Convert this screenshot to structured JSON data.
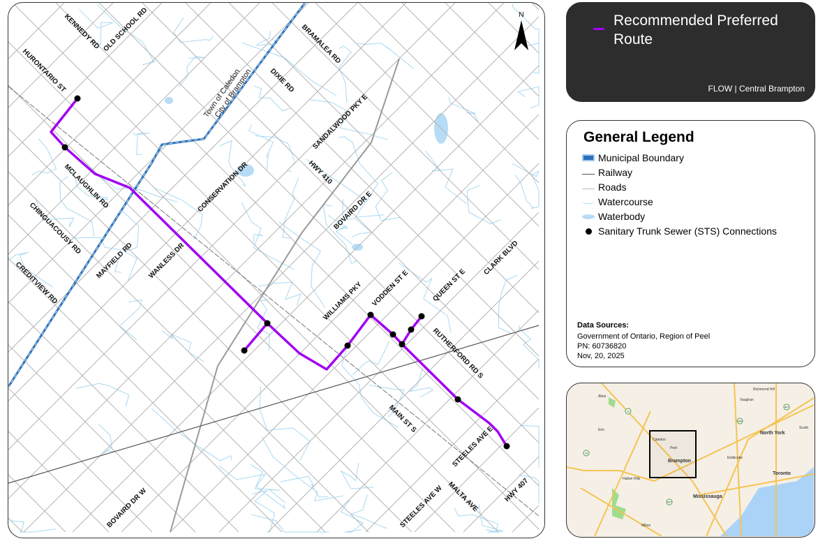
{
  "map": {
    "north_label": "N",
    "road_labels": [
      "KENNEDY RD",
      "OLD SCHOOL RD",
      "HURONTARIO ST",
      "BRAMALEA RD",
      "DIXIE RD",
      "SANDALWOOD PKY E",
      "HWY 410",
      "MCLAUGHLIN RD",
      "CONSERVATION DR",
      "CHINGUACOUSY RD",
      "MAYFIELD RD",
      "WANLESS DR",
      "BOVAIRD DR E",
      "CREDITVIEW RD",
      "WILLIAMS PKY",
      "VODDEN ST E",
      "QUEEN ST E",
      "CLARK BLVD",
      "RUTHERFORD RD S",
      "MAIN ST S",
      "STEELES AVE E",
      "BOVAIRD DR W",
      "STEELES AVE W",
      "MALTA AVE",
      "HWY 407"
    ],
    "boundary_labels": [
      "Town of Caledon",
      "City of Brampton"
    ],
    "colors": {
      "route": "#a100f2",
      "boundary": "#2a6fb8",
      "watercourse": "#a9d8f2",
      "roads": "#b5b5b5",
      "railway": "#555555"
    }
  },
  "title_panel": {
    "title": "Recommended Preferred Route",
    "subtitle": "FLOW | Central Brampton"
  },
  "legend": {
    "title": "General Legend",
    "items": [
      {
        "label": "Municipal Boundary",
        "icon": "boundary-icon"
      },
      {
        "label": "Railway",
        "icon": "railway-icon"
      },
      {
        "label": "Roads",
        "icon": "road-icon"
      },
      {
        "label": "Watercourse",
        "icon": "watercourse-icon"
      },
      {
        "label": "Waterbody",
        "icon": "waterbody-icon"
      },
      {
        "label": "Sanitary Trunk Sewer (STS) Connections",
        "icon": "dot-icon"
      }
    ],
    "data_sources_title": "Data Sources:",
    "data_sources": "Government of Ontario, Region of Peel",
    "project_number": "PN: 60736820",
    "date": "Nov, 20, 2025"
  },
  "inset": {
    "places": [
      "Alton",
      "Erin",
      "Caledon",
      "Peel",
      "Brampton",
      "Halton Hills",
      "Milton",
      "Mississauga",
      "Etobicoke",
      "Toronto",
      "North York",
      "Vaughan",
      "Richmond Hill",
      "Scarb"
    ],
    "highway_shields": [
      "10",
      "25",
      "400",
      "407",
      "407"
    ]
  }
}
